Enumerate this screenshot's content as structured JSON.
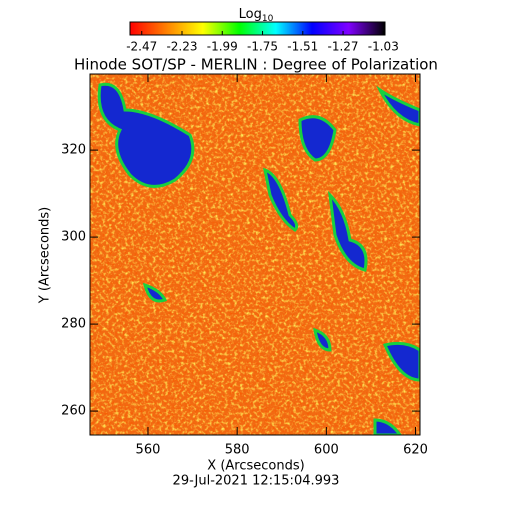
{
  "chart_data": {
    "type": "heatmap",
    "title": "Hinode SOT/SP - MERLIN : Degree of Polarization",
    "subtitle": "29-Jul-2021 12:15:04.993",
    "xlabel": "X (Arcseconds)",
    "ylabel": "Y (Arcseconds)",
    "xlim": [
      547,
      621
    ],
    "xticks": [
      560,
      580,
      600,
      620
    ],
    "ylim": [
      254.5,
      337.5
    ],
    "yticks": [
      260,
      280,
      300,
      320
    ],
    "colorbar_label": "Log",
    "colorbar_label_sub": "10",
    "clim": [
      -2.54,
      -1.02
    ],
    "cticks": [
      -2.47,
      -2.23,
      -1.99,
      -1.75,
      -1.51,
      -1.27,
      -1.03
    ],
    "colormap": [
      "#ff0000",
      "#ff8000",
      "#ffff00",
      "#00ff00",
      "#00ffff",
      "#0000ff",
      "#8000ff",
      "#000000"
    ]
  }
}
